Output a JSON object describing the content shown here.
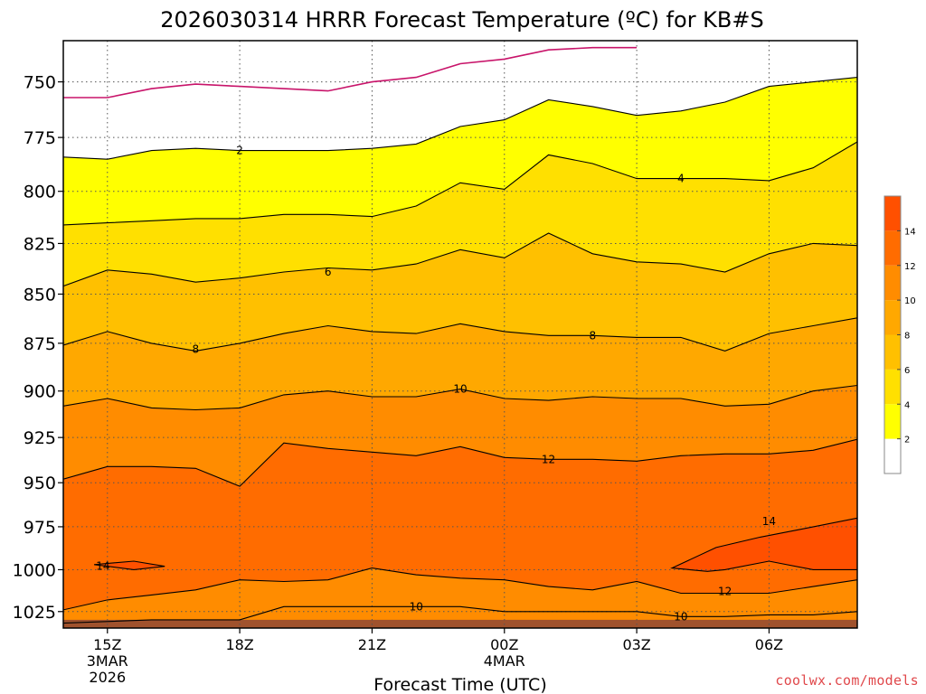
{
  "chart_data": {
    "type": "contour",
    "title": "2026030314 HRRR Forecast Temperature (ºC) for KB#S",
    "xlabel": "Forecast Time (UTC)",
    "ylabel": "",
    "x_ticks": [
      {
        "h": 1,
        "label": "15Z",
        "sub": [
          "3MAR",
          "2026"
        ]
      },
      {
        "h": 4,
        "label": "18Z",
        "sub": []
      },
      {
        "h": 7,
        "label": "21Z",
        "sub": []
      },
      {
        "h": 10,
        "label": "00Z",
        "sub": [
          "4MAR"
        ]
      },
      {
        "h": 13,
        "label": "03Z",
        "sub": []
      },
      {
        "h": 16,
        "label": "06Z",
        "sub": []
      }
    ],
    "xlim": [
      0,
      18
    ],
    "y_ticks": [
      750,
      775,
      800,
      825,
      850,
      875,
      900,
      925,
      950,
      975,
      1000,
      1025
    ],
    "ylim_pressure": [
      1035,
      732
    ],
    "levels": [
      0,
      2,
      4,
      6,
      8,
      10,
      12,
      14,
      16
    ],
    "colors": {
      "white": "#ffffff",
      "2-4": "#ffff00",
      "4-6": "#ffe000",
      "6-8": "#ffc000",
      "8-10": "#ffa800",
      "10-12": "#ff8c00",
      "12-14": "#ff6c00",
      "14-16": "#ff5000",
      "ground": "#a0522d",
      "zero_line": "#c8146a",
      "contour_line": "#000000"
    },
    "legend": {
      "position": "right",
      "labels": [
        "2",
        "4",
        "6",
        "8",
        "10",
        "12",
        "14"
      ]
    },
    "isotherms": [
      {
        "level": 0,
        "x": [
          0,
          1,
          2,
          3,
          4,
          5,
          6,
          7,
          8,
          9,
          10,
          11,
          12,
          13,
          14,
          15,
          16,
          17,
          18
        ],
        "p": [
          757,
          757,
          753,
          751,
          752,
          753,
          754,
          750,
          748,
          742,
          740,
          736,
          735,
          735,
          null,
          null,
          null,
          null,
          null
        ]
      },
      {
        "level": 2,
        "x": [
          0,
          1,
          2,
          3,
          4,
          5,
          6,
          7,
          8,
          9,
          10,
          11,
          12,
          13,
          14,
          15,
          16,
          17,
          18
        ],
        "p": [
          784,
          785,
          781,
          780,
          781,
          781,
          781,
          780,
          778,
          770,
          767,
          758,
          761,
          765,
          763,
          759,
          752,
          750,
          748
        ]
      },
      {
        "level": 4,
        "x": [
          0,
          1,
          2,
          3,
          4,
          5,
          6,
          7,
          8,
          9,
          10,
          11,
          12,
          13,
          14,
          15,
          16,
          17,
          18
        ],
        "p": [
          816,
          815,
          814,
          813,
          813,
          811,
          811,
          812,
          807,
          796,
          799,
          783,
          787,
          794,
          794,
          794,
          795,
          789,
          777
        ]
      },
      {
        "level": 6,
        "x": [
          0,
          1,
          2,
          3,
          4,
          5,
          6,
          7,
          8,
          9,
          10,
          11,
          12,
          13,
          14,
          15,
          16,
          17,
          18
        ],
        "p": [
          846,
          838,
          840,
          844,
          842,
          839,
          837,
          838,
          835,
          828,
          832,
          820,
          830,
          834,
          835,
          839,
          830,
          825,
          826
        ]
      },
      {
        "level": 8,
        "x": [
          0,
          1,
          2,
          3,
          4,
          5,
          6,
          7,
          8,
          9,
          10,
          11,
          12,
          13,
          14,
          15,
          16,
          17,
          18
        ],
        "p": [
          876,
          869,
          875,
          879,
          875,
          870,
          866,
          869,
          870,
          865,
          869,
          871,
          871,
          872,
          872,
          879,
          870,
          866,
          862
        ]
      },
      {
        "level": 10,
        "x": [
          0,
          1,
          2,
          3,
          4,
          5,
          6,
          7,
          8,
          9,
          10,
          11,
          12,
          13,
          14,
          15,
          16,
          17,
          18
        ],
        "p": [
          908,
          904,
          909,
          910,
          909,
          902,
          900,
          903,
          903,
          899,
          904,
          905,
          903,
          904,
          904,
          908,
          907,
          900,
          897
        ]
      },
      {
        "level": 12,
        "x": [
          0,
          1,
          2,
          3,
          4,
          5,
          6,
          7,
          8,
          9,
          10,
          11,
          12,
          13,
          14,
          15,
          16,
          17,
          18
        ],
        "p": [
          948,
          941,
          941,
          942,
          952,
          928,
          931,
          933,
          935,
          930,
          936,
          937,
          937,
          938,
          935,
          934,
          934,
          932,
          926
        ]
      },
      {
        "level": 14,
        "x": [
          0.7,
          1.6,
          2.3,
          1.6,
          0.7
        ],
        "p": [
          997,
          995,
          998,
          1000,
          997
        ],
        "closed": true
      },
      {
        "level": 14,
        "x": [
          13.8,
          14.8,
          15.8,
          16.8,
          18,
          18,
          17,
          16,
          15,
          14.6,
          13.8
        ],
        "p": [
          999,
          987,
          981,
          976,
          970,
          1000,
          1000,
          995,
          1000,
          1001,
          999
        ],
        "closed": true
      },
      {
        "level": 12,
        "x": [
          0,
          1,
          2,
          3,
          4,
          5,
          6,
          7,
          8,
          9,
          10,
          11,
          12,
          13,
          14,
          15,
          16,
          17,
          18
        ],
        "p": [
          1024,
          1018,
          1015,
          1012,
          1006,
          1007,
          1006,
          999,
          1003,
          1005,
          1006,
          1010,
          1012,
          1007,
          1014,
          1014,
          1014,
          1010,
          1006
        ]
      },
      {
        "level": 10,
        "x": [
          0,
          2,
          3,
          4,
          5,
          6,
          7,
          8,
          9,
          10,
          11,
          12,
          13,
          14,
          15,
          16,
          17,
          18
        ],
        "p": [
          1032,
          1030,
          1030,
          1030,
          1022,
          1022,
          1022,
          1022,
          1022,
          1025,
          1025,
          1025,
          1025,
          1028,
          1028,
          1027,
          1027,
          1025
        ]
      }
    ],
    "contour_labels": [
      {
        "text": "2",
        "x": 4.0,
        "p": 781
      },
      {
        "text": "4",
        "x": 14.0,
        "p": 794
      },
      {
        "text": "6",
        "x": 6.0,
        "p": 839
      },
      {
        "text": "8",
        "x": 3.0,
        "p": 878
      },
      {
        "text": "8",
        "x": 12.0,
        "p": 871
      },
      {
        "text": "10",
        "x": 9.0,
        "p": 899
      },
      {
        "text": "12",
        "x": 11.0,
        "p": 937
      },
      {
        "text": "14",
        "x": 0.9,
        "p": 998
      },
      {
        "text": "14",
        "x": 16.0,
        "p": 972
      },
      {
        "text": "10",
        "x": 8.0,
        "p": 1022
      },
      {
        "text": "12",
        "x": 15.0,
        "p": 1013
      },
      {
        "text": "10",
        "x": 14.0,
        "p": 1028
      }
    ]
  },
  "credit": "coolwx.com/models"
}
